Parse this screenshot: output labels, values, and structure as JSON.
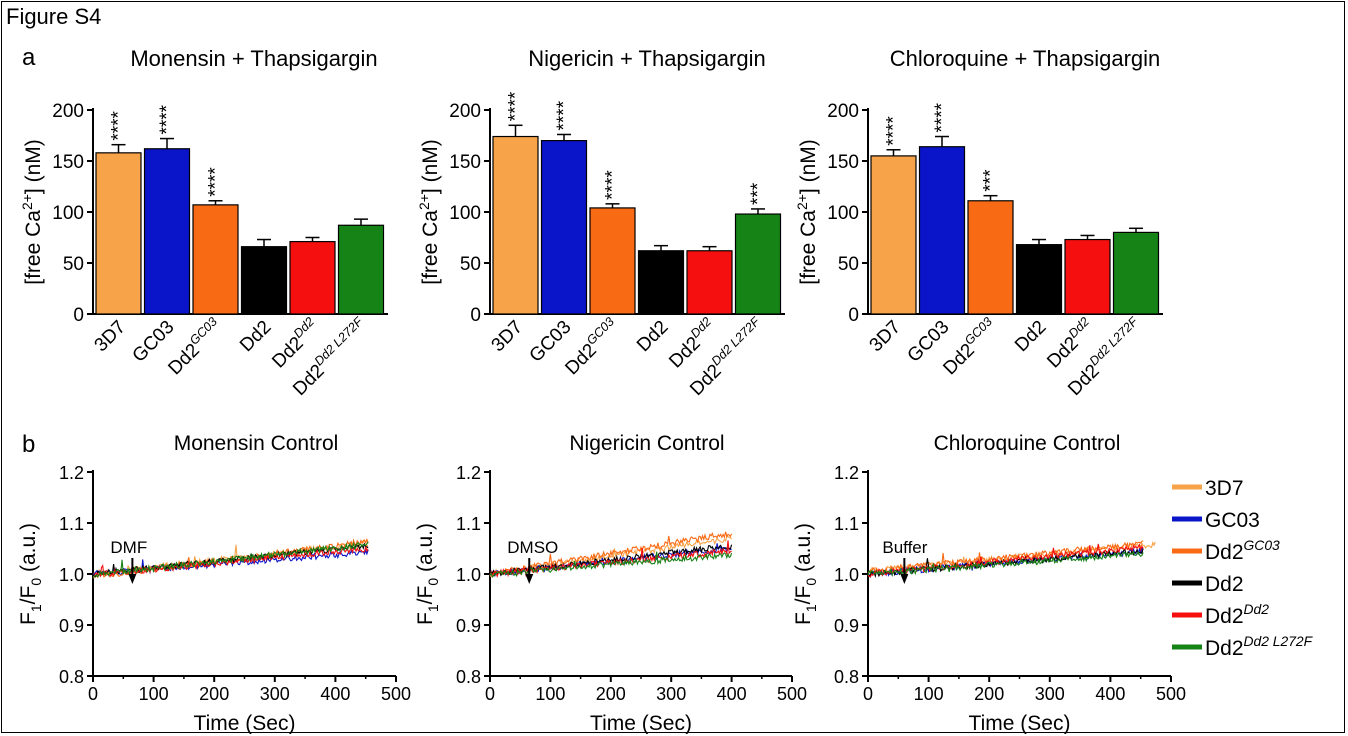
{
  "figure_title": "Figure S4",
  "panel_labels": [
    "a",
    "b"
  ],
  "legend": [
    {
      "base": "3D7",
      "sup": "",
      "color": "#f7a34a"
    },
    {
      "base": "GC03",
      "sup": "",
      "color": "#0a14c8"
    },
    {
      "base": "Dd2",
      "sup": "GC03",
      "color": "#f96a14"
    },
    {
      "base": "Dd2",
      "sup": "",
      "color": "#000000"
    },
    {
      "base": "Dd2",
      "sup": "Dd2",
      "color": "#f50f0f"
    },
    {
      "base": "Dd2",
      "sup": "Dd2 L272F",
      "color": "#168316"
    }
  ],
  "chart_data": [
    {
      "type": "bar",
      "title": "Monensin + Thapsigargin",
      "ylabel": "[free Ca2+] (nM)",
      "ylim": [
        0,
        200
      ],
      "yticks": [
        0,
        50,
        100,
        150,
        200
      ],
      "categories": [
        {
          "base": "3D7",
          "sup": ""
        },
        {
          "base": "GC03",
          "sup": ""
        },
        {
          "base": "Dd2",
          "sup": "GC03"
        },
        {
          "base": "Dd2",
          "sup": ""
        },
        {
          "base": "Dd2",
          "sup": "Dd2"
        },
        {
          "base": "Dd2",
          "sup": "Dd2 L272F"
        }
      ],
      "values": [
        158,
        162,
        107,
        66,
        71,
        87
      ],
      "errors": [
        8,
        10,
        4,
        7,
        4,
        6
      ],
      "colors": [
        "#f7a34a",
        "#0a14c8",
        "#f96a14",
        "#000000",
        "#f50f0f",
        "#168316"
      ],
      "annotations": [
        "****",
        "****",
        "****",
        "",
        "",
        ""
      ]
    },
    {
      "type": "bar",
      "title": "Nigericin + Thapsigargin",
      "ylabel": "[free Ca2+] (nM)",
      "ylim": [
        0,
        200
      ],
      "yticks": [
        0,
        50,
        100,
        150,
        200
      ],
      "categories": [
        {
          "base": "3D7",
          "sup": ""
        },
        {
          "base": "GC03",
          "sup": ""
        },
        {
          "base": "Dd2",
          "sup": "GC03"
        },
        {
          "base": "Dd2",
          "sup": ""
        },
        {
          "base": "Dd2",
          "sup": "Dd2"
        },
        {
          "base": "Dd2",
          "sup": "Dd2 L272F"
        }
      ],
      "values": [
        174,
        170,
        104,
        62,
        62,
        98
      ],
      "errors": [
        11,
        6,
        4,
        5,
        4,
        5
      ],
      "colors": [
        "#f7a34a",
        "#0a14c8",
        "#f96a14",
        "#000000",
        "#f50f0f",
        "#168316"
      ],
      "annotations": [
        "****",
        "****",
        "****",
        "",
        "",
        "***"
      ]
    },
    {
      "type": "bar",
      "title": "Chloroquine + Thapsigargin",
      "ylabel": "[free Ca2+] (nM)",
      "ylim": [
        0,
        200
      ],
      "yticks": [
        0,
        50,
        100,
        150,
        200
      ],
      "categories": [
        {
          "base": "3D7",
          "sup": ""
        },
        {
          "base": "GC03",
          "sup": ""
        },
        {
          "base": "Dd2",
          "sup": "GC03"
        },
        {
          "base": "Dd2",
          "sup": ""
        },
        {
          "base": "Dd2",
          "sup": "Dd2"
        },
        {
          "base": "Dd2",
          "sup": "Dd2 L272F"
        }
      ],
      "values": [
        155,
        164,
        111,
        68,
        73,
        80
      ],
      "errors": [
        6,
        10,
        5,
        5,
        4,
        4
      ],
      "colors": [
        "#f7a34a",
        "#0a14c8",
        "#f96a14",
        "#000000",
        "#f50f0f",
        "#168316"
      ],
      "annotations": [
        "****",
        "****",
        "***",
        "",
        "",
        ""
      ]
    },
    {
      "type": "line",
      "title": "Monensin Control",
      "xlabel": "Time (Sec)",
      "ylabel": "F1/F0 (a.u.)",
      "xlim": [
        0,
        500
      ],
      "ylim": [
        0.8,
        1.2
      ],
      "xticks": [
        0,
        100,
        200,
        300,
        400,
        500
      ],
      "yticks": [
        0.8,
        0.9,
        1.0,
        1.1,
        1.2
      ],
      "annotation": {
        "text": "DMF",
        "x": 65
      },
      "series": [
        {
          "name": "3D7",
          "color": "#f7a34a",
          "x_end": 455,
          "start": 1.0,
          "end": 1.06
        },
        {
          "name": "GC03",
          "color": "#0a14c8",
          "x_end": 455,
          "start": 1.0,
          "end": 1.043
        },
        {
          "name": "Dd2GC03",
          "color": "#f96a14",
          "x_end": 455,
          "start": 0.995,
          "end": 1.063
        },
        {
          "name": "Dd2",
          "color": "#000000",
          "x_end": 455,
          "start": 1.0,
          "end": 1.055
        },
        {
          "name": "Dd2Dd2",
          "color": "#f50f0f",
          "x_end": 455,
          "start": 0.998,
          "end": 1.05
        },
        {
          "name": "Dd2Dd2 L272F",
          "color": "#168316",
          "x_end": 455,
          "start": 0.998,
          "end": 1.058
        }
      ]
    },
    {
      "type": "line",
      "title": "Nigericin Control",
      "xlabel": "Time (Sec)",
      "ylabel": "F1/F0 (a.u.)",
      "xlim": [
        0,
        500
      ],
      "ylim": [
        0.8,
        1.2
      ],
      "xticks": [
        0,
        100,
        200,
        300,
        400,
        500
      ],
      "yticks": [
        0.8,
        0.9,
        1.0,
        1.1,
        1.2
      ],
      "annotation": {
        "text": "DMSO",
        "x": 65
      },
      "series": [
        {
          "name": "3D7",
          "color": "#f7a34a",
          "x_end": 400,
          "start": 1.0,
          "end": 1.07
        },
        {
          "name": "GC03",
          "color": "#0a14c8",
          "x_end": 400,
          "start": 1.0,
          "end": 1.05
        },
        {
          "name": "Dd2GC03",
          "color": "#f96a14",
          "x_end": 400,
          "start": 1.0,
          "end": 1.08
        },
        {
          "name": "Dd2",
          "color": "#000000",
          "x_end": 400,
          "start": 1.0,
          "end": 1.055
        },
        {
          "name": "Dd2Dd2",
          "color": "#f50f0f",
          "x_end": 400,
          "start": 1.0,
          "end": 1.045
        },
        {
          "name": "Dd2Dd2 L272F",
          "color": "#168316",
          "x_end": 400,
          "start": 1.0,
          "end": 1.038
        }
      ]
    },
    {
      "type": "line",
      "title": "Chloroquine Control",
      "xlabel": "Time (Sec)",
      "ylabel": "F1/F0 (a.u.)",
      "xlim": [
        0,
        500
      ],
      "ylim": [
        0.8,
        1.2
      ],
      "xticks": [
        0,
        100,
        200,
        300,
        400,
        500
      ],
      "yticks": [
        0.8,
        0.9,
        1.0,
        1.1,
        1.2
      ],
      "annotation": {
        "text": "Buffer",
        "x": 60
      },
      "series": [
        {
          "name": "3D7",
          "color": "#f7a34a",
          "x_end": 475,
          "start": 1.005,
          "end": 1.058
        },
        {
          "name": "GC03",
          "color": "#0a14c8",
          "x_end": 455,
          "start": 1.0,
          "end": 1.045
        },
        {
          "name": "Dd2GC03",
          "color": "#f96a14",
          "x_end": 455,
          "start": 1.005,
          "end": 1.06
        },
        {
          "name": "Dd2",
          "color": "#000000",
          "x_end": 455,
          "start": 1.0,
          "end": 1.045
        },
        {
          "name": "Dd2Dd2",
          "color": "#f50f0f",
          "x_end": 455,
          "start": 1.0,
          "end": 1.052
        },
        {
          "name": "Dd2Dd2 L272F",
          "color": "#168316",
          "x_end": 455,
          "start": 1.0,
          "end": 1.04
        }
      ]
    }
  ]
}
